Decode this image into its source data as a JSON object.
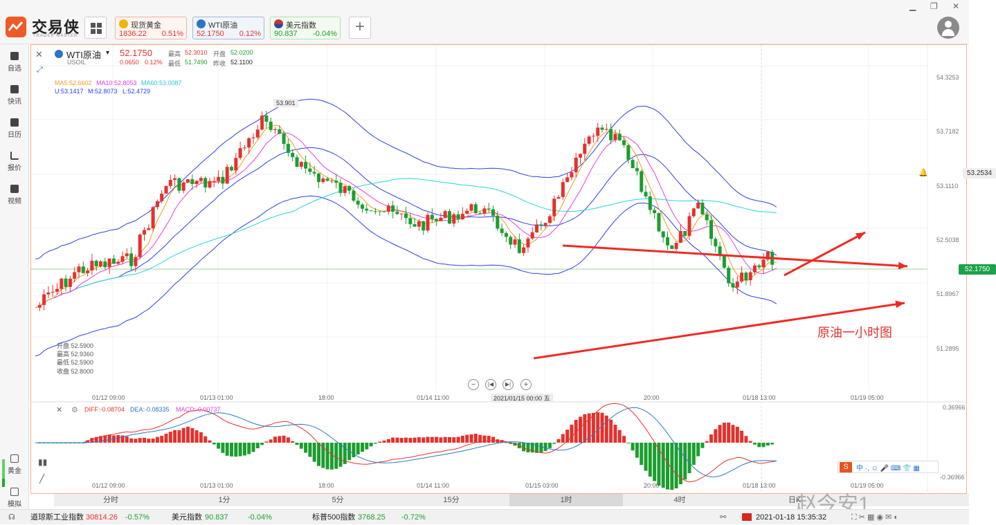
{
  "app": {
    "title": "交易侠",
    "subtitle": "TRADER MASTER"
  },
  "tickers": [
    {
      "name": "现货黄金",
      "price": "1836.22",
      "pct": "0.51%"
    },
    {
      "name": "WTI原油",
      "price": "52.1750",
      "pct": "0.12%"
    },
    {
      "name": "美元指数",
      "price": "90.837",
      "pct": "-0.04%"
    }
  ],
  "nav": [
    {
      "label": "自选",
      "icon": "bookmark-icon"
    },
    {
      "label": "快讯",
      "icon": "news-icon"
    },
    {
      "label": "日历",
      "icon": "calendar-icon"
    },
    {
      "label": "报价",
      "icon": "quote-icon"
    },
    {
      "label": "视频",
      "icon": "video-icon"
    }
  ],
  "nav_bottom": [
    {
      "label": "黄金",
      "icon": "gold-icon"
    },
    {
      "label": "模拟",
      "icon": "simulate-icon"
    }
  ],
  "symbol": {
    "name": "WTI原油",
    "code": "USOIL",
    "price": "52.1750",
    "change": "0.0650",
    "change_pct": "0.12%",
    "high_label": "最高",
    "high": "52.3010",
    "open_label": "开盘",
    "open": "52.0200",
    "low_label": "最低",
    "low": "51.7490",
    "prev_label": "昨收",
    "prev": "52.1100"
  },
  "ma_line": {
    "ma5": "MA5:52.6602",
    "ma10": "MA10:52.8053",
    "ma60": "MA60:53.0087"
  },
  "boll_line": {
    "u": "U:53.1417",
    "m": "M:52.8073",
    "l": "L:52.4729"
  },
  "ohlc_tip": {
    "open": "开盘 52.5900",
    "high": "最高 52.9360",
    "low": "最低 52.5900",
    "close": "收盘 52.8000"
  },
  "price_axis": [
    "54.3253",
    "53.7182",
    "53.1110",
    "52.5038",
    "51.8967",
    "51.2895"
  ],
  "current_price_label": "52.1750",
  "alert_price_label": "53.2534",
  "peak_label": "53.901",
  "time_axis": [
    "01/12 09:00",
    "01/13 01:00",
    "18:00",
    "01/14 11:00",
    "2021/01/15 00:00 五",
    "20:00",
    "01/18 13:00",
    "01/19 05:00"
  ],
  "time_axis_macd": [
    "01/12 09:00",
    "01/13 01:00",
    "18:00",
    "01/14 11:00",
    "01/15 03:00",
    "20:00",
    "01/18 13:00",
    "01/19 05:00"
  ],
  "macd": {
    "diff": "DIFF:-0.08704",
    "dea": "DEA:-0.08335",
    "macd": "MACD:-0.00737",
    "axis_top": "0.36966",
    "axis_bottom": "-0.36966"
  },
  "annotation": "原油一小时图",
  "timeframes": [
    "分时",
    "1分",
    "5分",
    "15分",
    "1时",
    "4时",
    "日K"
  ],
  "active_timeframe": "1时",
  "watermark": "赵今安1",
  "status": {
    "items": [
      {
        "name": "道琼斯工业指数",
        "value": "30814.26",
        "pct": "-0.57%"
      },
      {
        "name": "美元指数",
        "value": "90.837",
        "pct": "-0.04%"
      },
      {
        "name": "标普500指数",
        "value": "3768.25",
        "pct": "-0.72%"
      }
    ],
    "datetime": "2021-01-18 15:35:32"
  },
  "colors": {
    "up": "#e5312c",
    "down": "#1b9e2f",
    "accent": "#f05a28",
    "ma5": "#f39a1e",
    "ma10": "#e13fe0",
    "ma60": "#27d3d8",
    "boll": "#2c3ee6"
  }
}
